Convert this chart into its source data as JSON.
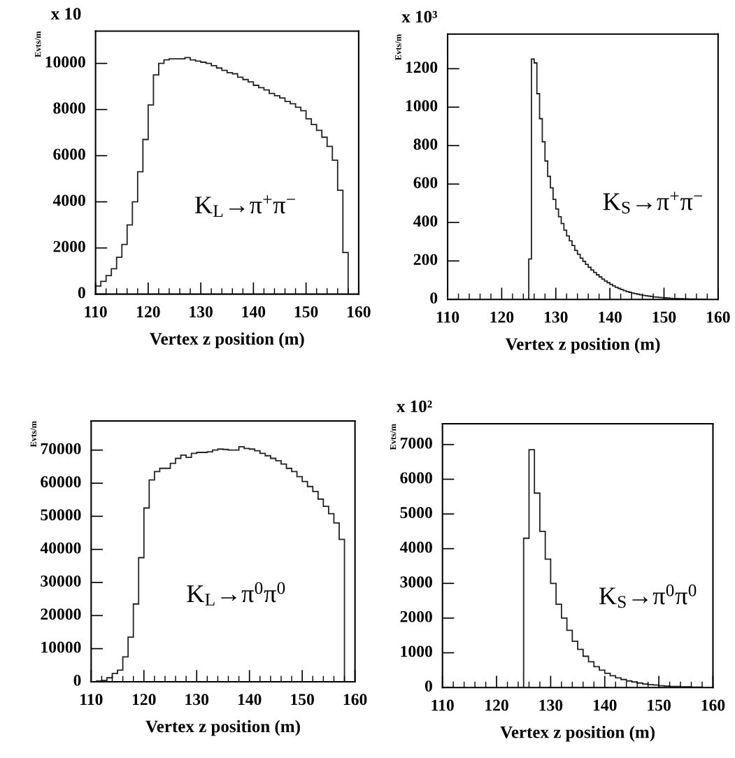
{
  "chart_data": [
    {
      "type": "histogram",
      "xlabel": "Vertex z position (m)",
      "ylabel": "Evts/m",
      "annotations": [
        "K$_{L}$→π$^{+}$π$^{−}$",
        "x 10"
      ],
      "xlim": [
        110,
        160
      ],
      "xticks": [
        110,
        {
          "value": 112,
          "label": null
        },
        {
          "value": 114,
          "label": null
        },
        {
          "value": 116,
          "label": null
        },
        {
          "value": 118,
          "label": null
        },
        120,
        {
          "value": 122,
          "label": null
        },
        {
          "value": 124,
          "label": null
        },
        {
          "value": 126,
          "label": null
        },
        {
          "value": 128,
          "label": null
        },
        130,
        {
          "value": 132,
          "label": null
        },
        {
          "value": 134,
          "label": null
        },
        {
          "value": 136,
          "label": null
        },
        {
          "value": 138,
          "label": null
        },
        140,
        {
          "value": 142,
          "label": null
        },
        {
          "value": 144,
          "label": null
        },
        {
          "value": 146,
          "label": null
        },
        {
          "value": 148,
          "label": null
        },
        150,
        {
          "value": 152,
          "label": null
        },
        {
          "value": 154,
          "label": null
        },
        {
          "value": 156,
          "label": null
        },
        {
          "value": 158,
          "label": null
        },
        160
      ],
      "ylim": [
        0,
        11400
      ],
      "yticks": [
        0,
        2000,
        4000,
        6000,
        8000,
        10000
      ],
      "bins": [
        110,
        111,
        112,
        113,
        114,
        115,
        116,
        117,
        118,
        119,
        120,
        121,
        122,
        123,
        124,
        125,
        126,
        127,
        128,
        129,
        130,
        131,
        132,
        133,
        134,
        135,
        136,
        137,
        138,
        139,
        140,
        141,
        142,
        143,
        144,
        145,
        146,
        147,
        148,
        149,
        150,
        151,
        152,
        153,
        154,
        155,
        156,
        157,
        158
      ],
      "series": [
        {
          "color": "#222222",
          "values": [
            350,
            550,
            800,
            1100,
            1600,
            2150,
            3000,
            4000,
            5300,
            6700,
            8200,
            9500,
            10000,
            10150,
            10200,
            10200,
            10200,
            10250,
            10150,
            10100,
            10050,
            10000,
            9900,
            9800,
            9700,
            9600,
            9550,
            9400,
            9300,
            9200,
            9050,
            8950,
            8850,
            8700,
            8600,
            8500,
            8350,
            8250,
            8100,
            7950,
            7600,
            7350,
            7100,
            6800,
            6400,
            5800,
            4500,
            1800
          ]
        }
      ]
    },
    {
      "type": "histogram",
      "xlabel": "Vertex z position (m)",
      "ylabel": "Evts/m",
      "annotations": [
        "K$_{S}$→π$^{+}$π$^{−}$",
        "x 10³"
      ],
      "xlim": [
        110,
        160
      ],
      "xticks": [
        110,
        {
          "value": 112,
          "label": null
        },
        {
          "value": 114,
          "label": null
        },
        {
          "value": 116,
          "label": null
        },
        {
          "value": 118,
          "label": null
        },
        120,
        {
          "value": 122,
          "label": null
        },
        {
          "value": 124,
          "label": null
        },
        {
          "value": 126,
          "label": null
        },
        {
          "value": 128,
          "label": null
        },
        130,
        {
          "value": 132,
          "label": null
        },
        {
          "value": 134,
          "label": null
        },
        {
          "value": 136,
          "label": null
        },
        {
          "value": 138,
          "label": null
        },
        140,
        {
          "value": 142,
          "label": null
        },
        {
          "value": 144,
          "label": null
        },
        {
          "value": 146,
          "label": null
        },
        {
          "value": 148,
          "label": null
        },
        150,
        {
          "value": 152,
          "label": null
        },
        {
          "value": 154,
          "label": null
        },
        {
          "value": 156,
          "label": null
        },
        {
          "value": 158,
          "label": null
        },
        160
      ],
      "ylim": [
        0,
        1380
      ],
      "yticks": [
        0,
        200,
        400,
        600,
        800,
        1000,
        1200
      ],
      "bins": [
        125,
        125.5,
        126,
        126.5,
        127,
        127.5,
        128,
        128.5,
        129,
        129.5,
        130,
        130.5,
        131,
        131.5,
        132,
        132.5,
        133,
        133.5,
        134,
        134.5,
        135,
        135.5,
        136,
        136.5,
        137,
        137.5,
        138,
        138.5,
        139,
        139.5,
        140,
        140.5,
        141,
        141.5,
        142,
        142.5,
        143,
        143.5,
        144,
        144.5,
        145,
        145.5,
        146,
        146.5,
        147,
        147.5,
        148,
        148.5,
        149,
        149.5,
        150,
        150.5,
        151,
        151.5,
        152,
        152.5,
        153,
        153.5,
        154,
        154.5,
        155,
        155.5,
        156,
        156.5,
        157,
        157.5,
        158
      ],
      "series": [
        {
          "color": "#222222",
          "values": [
            210,
            1250,
            1230,
            1070,
            940,
            820,
            720,
            640,
            580,
            520,
            470,
            430,
            395,
            360,
            330,
            305,
            280,
            255,
            235,
            215,
            198,
            182,
            167,
            153,
            140,
            128,
            117,
            106,
            96,
            87,
            78,
            70,
            63,
            57,
            51,
            46,
            41,
            37,
            33,
            30,
            27,
            24,
            21,
            19,
            17,
            15,
            13,
            12,
            10,
            9,
            8,
            7,
            6,
            5,
            5,
            4,
            4,
            3,
            3,
            2,
            2,
            2,
            1,
            1,
            1,
            1
          ]
        }
      ]
    },
    {
      "type": "histogram",
      "xlabel": "Vertex z position (m)",
      "ylabel": "Evts/m",
      "annotations": [
        "K$_{L}$→π$^{0}$π$^{0}$"
      ],
      "xlim": [
        110,
        160
      ],
      "xticks": [
        110,
        {
          "value": 112,
          "label": null
        },
        {
          "value": 114,
          "label": null
        },
        {
          "value": 116,
          "label": null
        },
        {
          "value": 118,
          "label": null
        },
        120,
        {
          "value": 122,
          "label": null
        },
        {
          "value": 124,
          "label": null
        },
        {
          "value": 126,
          "label": null
        },
        {
          "value": 128,
          "label": null
        },
        130,
        {
          "value": 132,
          "label": null
        },
        {
          "value": 134,
          "label": null
        },
        {
          "value": 136,
          "label": null
        },
        {
          "value": 138,
          "label": null
        },
        140,
        {
          "value": 142,
          "label": null
        },
        {
          "value": 144,
          "label": null
        },
        {
          "value": 146,
          "label": null
        },
        {
          "value": 148,
          "label": null
        },
        150,
        {
          "value": 152,
          "label": null
        },
        {
          "value": 154,
          "label": null
        },
        {
          "value": 156,
          "label": null
        },
        {
          "value": 158,
          "label": null
        },
        160
      ],
      "ylim": [
        0,
        78800
      ],
      "yticks": [
        0,
        10000,
        20000,
        30000,
        40000,
        50000,
        60000,
        70000
      ],
      "bins": [
        110,
        111,
        112,
        113,
        114,
        115,
        116,
        117,
        118,
        119,
        120,
        121,
        122,
        123,
        124,
        125,
        126,
        127,
        128,
        129,
        130,
        131,
        132,
        133,
        134,
        135,
        136,
        137,
        138,
        139,
        140,
        141,
        142,
        143,
        144,
        145,
        146,
        147,
        148,
        149,
        150,
        151,
        152,
        153,
        154,
        155,
        156,
        157,
        158
      ],
      "series": [
        {
          "color": "#222222",
          "values": [
            0,
            200,
            400,
            1200,
            2500,
            3500,
            7500,
            13500,
            23500,
            37500,
            52500,
            61000,
            63500,
            64500,
            64500,
            66000,
            67500,
            68500,
            67800,
            69000,
            69300,
            69300,
            69500,
            70000,
            70300,
            70200,
            70000,
            70000,
            71000,
            70500,
            70300,
            69800,
            69000,
            68300,
            67500,
            66800,
            65800,
            64500,
            63500,
            62000,
            60500,
            59000,
            57500,
            55200,
            53000,
            50800,
            48000,
            43000
          ]
        }
      ]
    },
    {
      "type": "histogram",
      "xlabel": "Vertex z position (m)",
      "ylabel": "Evts/m",
      "annotations": [
        "K$_{S}$→π$^{0}$π$^{0}$",
        "x 10²"
      ],
      "xlim": [
        110,
        160
      ],
      "xticks": [
        110,
        {
          "value": 112,
          "label": null
        },
        {
          "value": 114,
          "label": null
        },
        {
          "value": 116,
          "label": null
        },
        {
          "value": 118,
          "label": null
        },
        120,
        {
          "value": 122,
          "label": null
        },
        {
          "value": 124,
          "label": null
        },
        {
          "value": 126,
          "label": null
        },
        {
          "value": 128,
          "label": null
        },
        130,
        {
          "value": 132,
          "label": null
        },
        {
          "value": 134,
          "label": null
        },
        {
          "value": 136,
          "label": null
        },
        {
          "value": 138,
          "label": null
        },
        140,
        {
          "value": 142,
          "label": null
        },
        {
          "value": 144,
          "label": null
        },
        {
          "value": 146,
          "label": null
        },
        {
          "value": 148,
          "label": null
        },
        150,
        {
          "value": 152,
          "label": null
        },
        {
          "value": 154,
          "label": null
        },
        {
          "value": 156,
          "label": null
        },
        {
          "value": 158,
          "label": null
        },
        160
      ],
      "ylim": [
        0,
        7600
      ],
      "yticks": [
        0,
        1000,
        2000,
        3000,
        4000,
        5000,
        6000,
        7000
      ],
      "bins": [
        125,
        126,
        127,
        128,
        129,
        130,
        131,
        132,
        133,
        134,
        135,
        136,
        137,
        138,
        139,
        140,
        141,
        142,
        143,
        144,
        145,
        146,
        147,
        148,
        149,
        150,
        151,
        152,
        153,
        154,
        155,
        156,
        157,
        158
      ],
      "series": [
        {
          "color": "#222222",
          "values": [
            4300,
            6850,
            5600,
            4500,
            3700,
            3000,
            2400,
            2000,
            1650,
            1330,
            1100,
            900,
            740,
            600,
            500,
            410,
            340,
            280,
            230,
            190,
            160,
            130,
            100,
            80,
            70,
            50,
            40,
            30,
            30,
            20,
            20,
            10,
            10
          ]
        }
      ]
    }
  ]
}
